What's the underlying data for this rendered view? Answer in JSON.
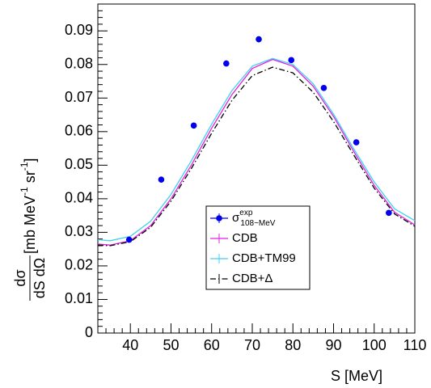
{
  "chart_data": {
    "type": "scatter",
    "x_label": "S [MeV]",
    "y_label": {
      "numerator": "dσ",
      "denominator": "dS dΩ",
      "unit": [
        "[mb MeV",
        "-1",
        " sr",
        "-1",
        "]"
      ]
    },
    "xlim": [
      32,
      110
    ],
    "ylim": [
      0,
      0.098
    ],
    "xticks": [
      40,
      50,
      60,
      70,
      80,
      90,
      100,
      110
    ],
    "yticks": [
      0,
      0.01,
      0.02,
      0.03,
      0.04,
      0.05,
      0.06,
      0.07,
      0.08,
      0.09
    ],
    "series": [
      {
        "name": "σ",
        "name_sup": "exp",
        "name_sub": "108~MeV",
        "style": "points",
        "color": "#0000ee",
        "x": [
          39.7,
          47.6,
          55.6,
          63.6,
          71.6,
          79.6,
          87.6,
          95.6,
          103.6
        ],
        "values": [
          0.0278,
          0.0457,
          0.0618,
          0.0803,
          0.0875,
          0.0813,
          0.073,
          0.0568,
          0.0358
        ],
        "errors": [
          0.0008,
          0.0008,
          0.0008,
          0.0009,
          0.0009,
          0.0008,
          0.0008,
          0.0008,
          0.0007
        ]
      },
      {
        "name": "CDB",
        "style": "line",
        "dash": "solid",
        "color": "#e020e0",
        "x": [
          32,
          35,
          40,
          45,
          50,
          55,
          60,
          65,
          70,
          75,
          80,
          85,
          90,
          95,
          100,
          105,
          110
        ],
        "values": [
          0.0265,
          0.0262,
          0.0275,
          0.032,
          0.04,
          0.05,
          0.061,
          0.071,
          0.0788,
          0.0815,
          0.0795,
          0.0735,
          0.0645,
          0.054,
          0.044,
          0.036,
          0.0322
        ]
      },
      {
        "name": "CDB+TM99",
        "style": "line",
        "dash": "solid",
        "color": "#40d0f0",
        "x": [
          32,
          35,
          40,
          45,
          50,
          55,
          60,
          65,
          70,
          75,
          80,
          85,
          90,
          95,
          100,
          105,
          110
        ],
        "values": [
          0.0278,
          0.0275,
          0.0288,
          0.0333,
          0.0413,
          0.0513,
          0.0622,
          0.0722,
          0.0795,
          0.0818,
          0.08,
          0.0742,
          0.0652,
          0.0548,
          0.045,
          0.037,
          0.0335
        ]
      },
      {
        "name": "CDB+Δ",
        "style": "line",
        "dash": "dashdot",
        "color": "#000000",
        "x": [
          32,
          35,
          40,
          45,
          50,
          55,
          60,
          65,
          70,
          75,
          80,
          85,
          90,
          95,
          100,
          105,
          110
        ],
        "values": [
          0.0262,
          0.026,
          0.0272,
          0.0315,
          0.0393,
          0.049,
          0.0595,
          0.0693,
          0.0767,
          0.0792,
          0.0775,
          0.0717,
          0.063,
          0.053,
          0.0432,
          0.0355,
          0.0318
        ]
      }
    ]
  }
}
